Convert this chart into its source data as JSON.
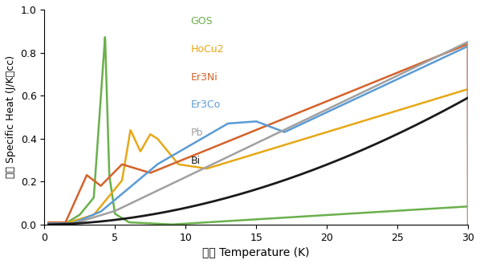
{
  "xlabel": "温度 Temperature (K)",
  "ylabel": "比熱 Specific Heat (J/K・cc)",
  "xlim": [
    0,
    30
  ],
  "ylim": [
    0,
    1.0
  ],
  "xticks": [
    0,
    5,
    10,
    15,
    20,
    25,
    30
  ],
  "yticks": [
    0.0,
    0.2,
    0.4,
    0.6,
    0.8,
    1.0
  ],
  "legend_labels": [
    "GOS",
    "HoCu2",
    "Er3Ni",
    "Er3Co",
    "Pb",
    "Bi"
  ],
  "colors": {
    "GOS": "#6ab04c",
    "HoCu2": "#e6a817",
    "Er3Ni": "#d4622a",
    "Er3Co": "#5b9bd5",
    "Pb": "#a0a0a0",
    "Bi": "#1a1a1a"
  },
  "background": "#ffffff"
}
